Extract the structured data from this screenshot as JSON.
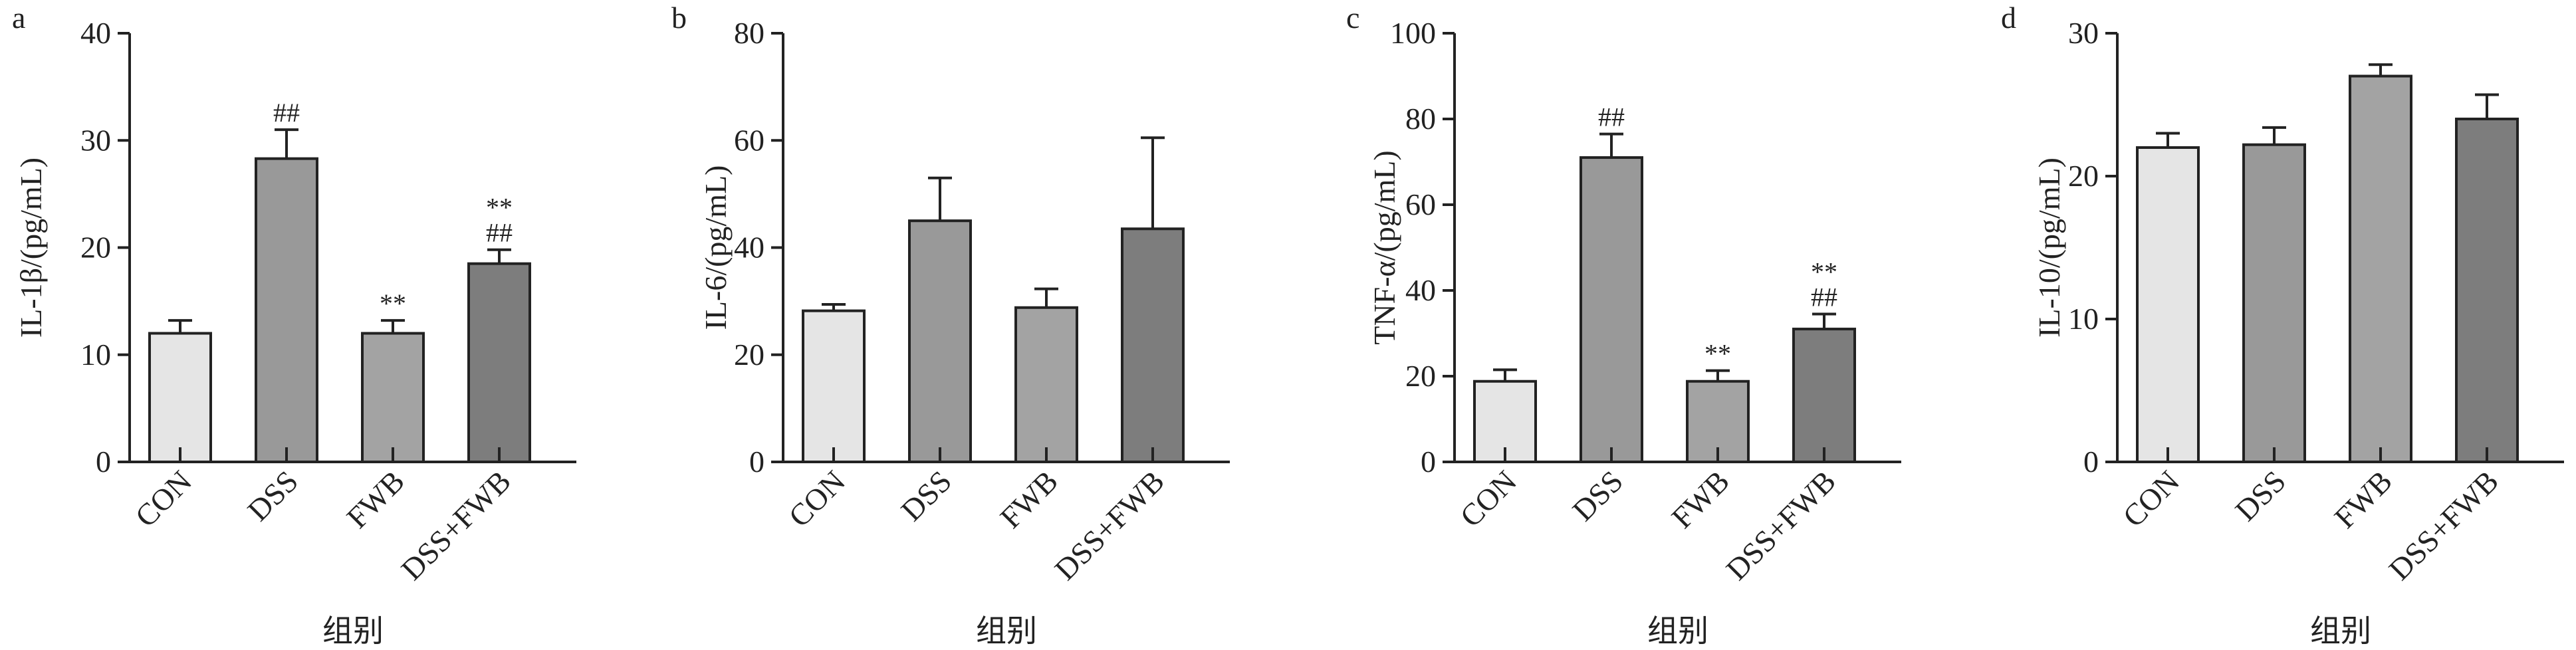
{
  "chart_data": [
    {
      "type": "bar",
      "panel": "a",
      "ylabel": "IL-1β/(pg/mL)",
      "xlabel": "组别",
      "categories": [
        "CON",
        "DSS",
        "FWB",
        "DSS+FWB"
      ],
      "values": [
        12,
        28.3,
        12,
        18.5
      ],
      "errors": [
        1.2,
        2.7,
        1.2,
        1.3
      ],
      "annotations": [
        [],
        [
          "##"
        ],
        [
          "**"
        ],
        [
          "##",
          "**"
        ]
      ],
      "ylim": [
        0,
        40
      ],
      "yticks": [
        0,
        10,
        20,
        30,
        40
      ],
      "colors": [
        "#e5e5e5",
        "#999999",
        "#a3a3a3",
        "#7d7d7d"
      ]
    },
    {
      "type": "bar",
      "panel": "b",
      "ylabel": "IL-6/(pg/mL)",
      "xlabel": "组别",
      "categories": [
        "CON",
        "DSS",
        "FWB",
        "DSS+FWB"
      ],
      "values": [
        28.2,
        45,
        28.8,
        43.5
      ],
      "errors": [
        1.2,
        8,
        3.5,
        17
      ],
      "annotations": [
        [],
        [],
        [],
        []
      ],
      "ylim": [
        0,
        80
      ],
      "yticks": [
        0,
        20,
        40,
        60,
        80
      ],
      "colors": [
        "#e5e5e5",
        "#999999",
        "#a3a3a3",
        "#7d7d7d"
      ]
    },
    {
      "type": "bar",
      "panel": "c",
      "ylabel": "TNF-α/(pg/mL)",
      "xlabel": "组别",
      "categories": [
        "CON",
        "DSS",
        "FWB",
        "DSS+FWB"
      ],
      "values": [
        18.8,
        71,
        18.8,
        31
      ],
      "errors": [
        2.7,
        5.5,
        2.5,
        3.5
      ],
      "annotations": [
        [],
        [
          "##"
        ],
        [
          "**"
        ],
        [
          "##",
          "**"
        ]
      ],
      "ylim": [
        0,
        100
      ],
      "yticks": [
        0,
        20,
        40,
        60,
        80,
        100
      ],
      "colors": [
        "#e5e5e5",
        "#999999",
        "#a3a3a3",
        "#7d7d7d"
      ]
    },
    {
      "type": "bar",
      "panel": "d",
      "ylabel": "IL-10/(pg/mL)",
      "xlabel": "组别",
      "categories": [
        "CON",
        "DSS",
        "FWB",
        "DSS+FWB"
      ],
      "values": [
        22,
        22.2,
        27,
        24
      ],
      "errors": [
        1,
        1.2,
        0.8,
        1.7
      ],
      "annotations": [
        [],
        [],
        [],
        []
      ],
      "ylim": [
        0,
        30
      ],
      "yticks": [
        0,
        10,
        20,
        30
      ],
      "colors": [
        "#e5e5e5",
        "#999999",
        "#a3a3a3",
        "#7d7d7d"
      ]
    }
  ]
}
